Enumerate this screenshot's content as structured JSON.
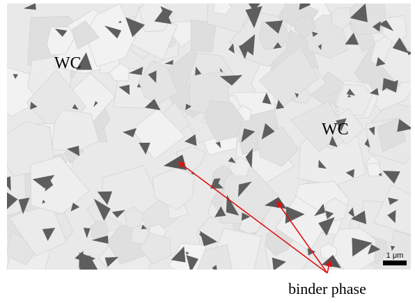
{
  "labels": [
    "WC",
    "WC"
  ],
  "scale_bar": "1 μm",
  "annotation": "binder phase"
}
